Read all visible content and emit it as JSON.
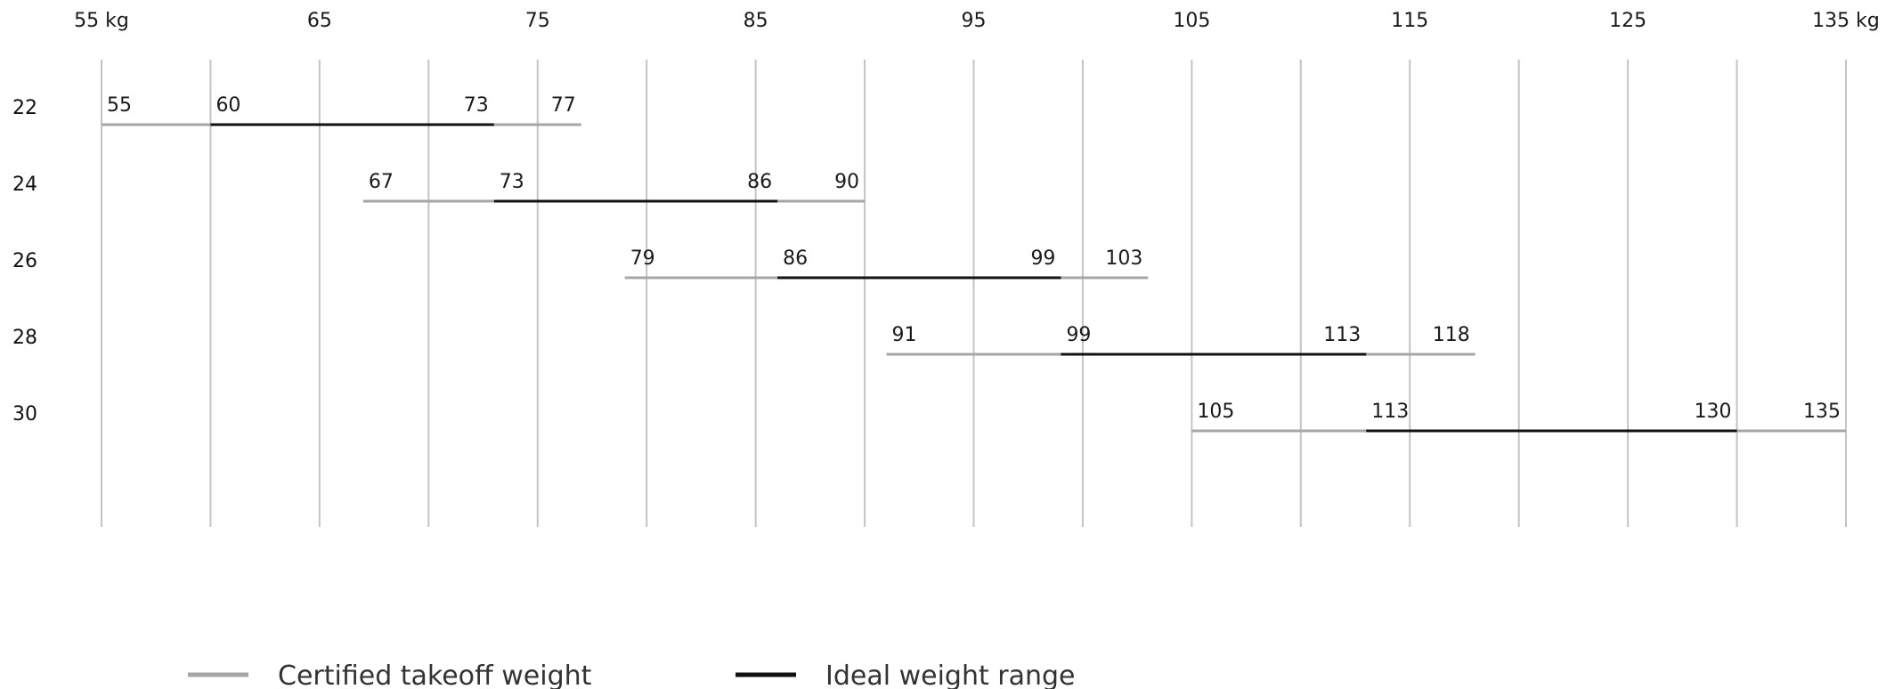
{
  "chart_data": {
    "type": "range",
    "x_axis": {
      "min": 55,
      "max": 135,
      "unit": "kg",
      "tick_labels": [
        "55 kg",
        "65",
        "75",
        "85",
        "95",
        "105",
        "115",
        "125",
        "135 kg"
      ],
      "tick_values": [
        55,
        65,
        75,
        85,
        95,
        105,
        115,
        125,
        135
      ],
      "grid_values": [
        55,
        60,
        65,
        70,
        75,
        80,
        85,
        90,
        95,
        100,
        105,
        110,
        115,
        120,
        125,
        130,
        135
      ],
      "grid": true,
      "position": "top"
    },
    "rows": [
      {
        "label": "22",
        "certified": [
          55,
          77
        ],
        "ideal": [
          60,
          73
        ]
      },
      {
        "label": "24",
        "certified": [
          67,
          90
        ],
        "ideal": [
          73,
          86
        ]
      },
      {
        "label": "26",
        "certified": [
          79,
          103
        ],
        "ideal": [
          86,
          99
        ]
      },
      {
        "label": "28",
        "certified": [
          91,
          118
        ],
        "ideal": [
          99,
          113
        ]
      },
      {
        "label": "30",
        "certified": [
          105,
          135
        ],
        "ideal": [
          113,
          130
        ]
      }
    ],
    "legend": {
      "placement": "bottom",
      "entries": [
        {
          "name": "Certified takeoff weight",
          "color": "#a6a6a6"
        },
        {
          "name": "Ideal weight range",
          "color": "#111111"
        }
      ]
    }
  }
}
